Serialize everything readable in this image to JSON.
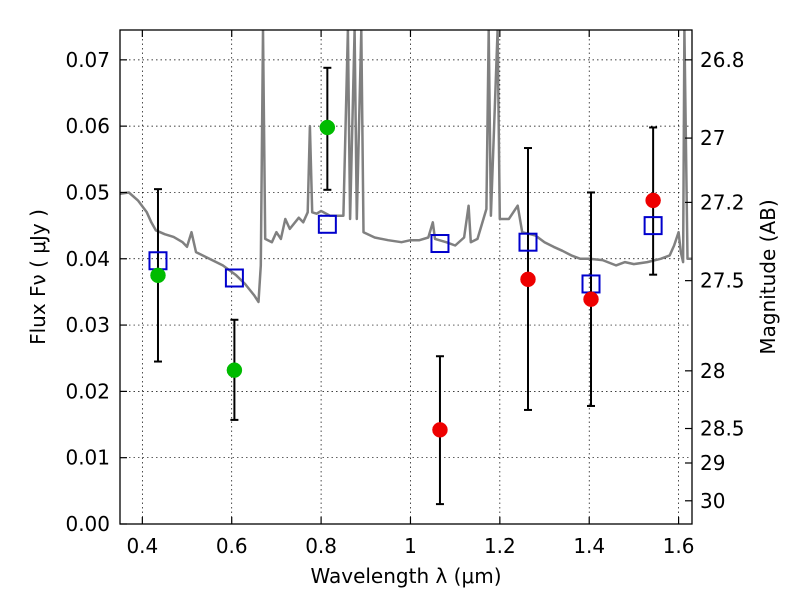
{
  "chart_data": {
    "type": "scatter",
    "title": "",
    "xlabel": "Wavelength  λ (μm)",
    "ylabel": "Flux  Fν  ( μJy )",
    "y2label": "Magnitude (AB)",
    "xlim": [
      0.35,
      1.63
    ],
    "ylim": [
      0.0,
      0.0745
    ],
    "grid": true,
    "legend": "none",
    "x_ticks": [
      {
        "value": 0.4,
        "label": "0.4"
      },
      {
        "value": 0.6,
        "label": "0.6"
      },
      {
        "value": 0.8,
        "label": "0.8"
      },
      {
        "value": 1.0,
        "label": "1"
      },
      {
        "value": 1.2,
        "label": "1.2"
      },
      {
        "value": 1.4,
        "label": "1.4"
      },
      {
        "value": 1.6,
        "label": "1.6"
      }
    ],
    "y_ticks": [
      {
        "value": 0.0,
        "label": "0.00"
      },
      {
        "value": 0.01,
        "label": "0.01"
      },
      {
        "value": 0.02,
        "label": "0.02"
      },
      {
        "value": 0.03,
        "label": "0.03"
      },
      {
        "value": 0.04,
        "label": "0.04"
      },
      {
        "value": 0.05,
        "label": "0.05"
      },
      {
        "value": 0.06,
        "label": "0.06"
      },
      {
        "value": 0.07,
        "label": "0.07"
      }
    ],
    "y2_ticks": [
      {
        "flux": 0.07,
        "label": "26.8"
      },
      {
        "flux": 0.0582,
        "label": "27"
      },
      {
        "flux": 0.0485,
        "label": "27.2"
      },
      {
        "flux": 0.0367,
        "label": "27.5"
      },
      {
        "flux": 0.0231,
        "label": "28"
      },
      {
        "flux": 0.0144,
        "label": "28.5"
      },
      {
        "flux": 0.0092,
        "label": "29"
      },
      {
        "flux": 0.0035,
        "label": "30"
      }
    ],
    "model_spectrum": {
      "color": "#808080",
      "points": [
        [
          0.35,
          0.0498
        ],
        [
          0.37,
          0.05
        ],
        [
          0.39,
          0.0488
        ],
        [
          0.41,
          0.047
        ],
        [
          0.42,
          0.0455
        ],
        [
          0.43,
          0.0443
        ],
        [
          0.45,
          0.0437
        ],
        [
          0.47,
          0.0433
        ],
        [
          0.49,
          0.0425
        ],
        [
          0.5,
          0.0418
        ],
        [
          0.51,
          0.044
        ],
        [
          0.52,
          0.041
        ],
        [
          0.55,
          0.04
        ],
        [
          0.58,
          0.039
        ],
        [
          0.61,
          0.0375
        ],
        [
          0.63,
          0.0362
        ],
        [
          0.65,
          0.0345
        ],
        [
          0.66,
          0.0335
        ],
        [
          0.665,
          0.039
        ],
        [
          0.67,
          0.0745
        ],
        [
          0.675,
          0.043
        ],
        [
          0.69,
          0.0425
        ],
        [
          0.7,
          0.044
        ],
        [
          0.71,
          0.043
        ],
        [
          0.72,
          0.046
        ],
        [
          0.73,
          0.0445
        ],
        [
          0.75,
          0.0462
        ],
        [
          0.76,
          0.0455
        ],
        [
          0.77,
          0.047
        ],
        [
          0.775,
          0.06
        ],
        [
          0.78,
          0.047
        ],
        [
          0.79,
          0.0468
        ],
        [
          0.8,
          0.0472
        ],
        [
          0.82,
          0.0465
        ],
        [
          0.85,
          0.0465
        ],
        [
          0.86,
          0.0745
        ],
        [
          0.865,
          0.046
        ],
        [
          0.875,
          0.0745
        ],
        [
          0.88,
          0.046
        ],
        [
          0.89,
          0.0745
        ],
        [
          0.895,
          0.044
        ],
        [
          0.92,
          0.0432
        ],
        [
          0.95,
          0.0428
        ],
        [
          0.98,
          0.0425
        ],
        [
          1.0,
          0.0428
        ],
        [
          1.02,
          0.0428
        ],
        [
          1.04,
          0.0432
        ],
        [
          1.05,
          0.0455
        ],
        [
          1.055,
          0.043
        ],
        [
          1.08,
          0.0425
        ],
        [
          1.1,
          0.042
        ],
        [
          1.12,
          0.0432
        ],
        [
          1.13,
          0.048
        ],
        [
          1.135,
          0.0425
        ],
        [
          1.15,
          0.043
        ],
        [
          1.17,
          0.0475
        ],
        [
          1.175,
          0.0745
        ],
        [
          1.18,
          0.0465
        ],
        [
          1.195,
          0.0745
        ],
        [
          1.2,
          0.046
        ],
        [
          1.22,
          0.046
        ],
        [
          1.24,
          0.048
        ],
        [
          1.25,
          0.044
        ],
        [
          1.28,
          0.0435
        ],
        [
          1.3,
          0.0425
        ],
        [
          1.32,
          0.0418
        ],
        [
          1.34,
          0.0412
        ],
        [
          1.36,
          0.0405
        ],
        [
          1.38,
          0.04
        ],
        [
          1.4,
          0.04
        ],
        [
          1.43,
          0.0398
        ],
        [
          1.46,
          0.039
        ],
        [
          1.48,
          0.0395
        ],
        [
          1.5,
          0.0392
        ],
        [
          1.53,
          0.0395
        ],
        [
          1.56,
          0.04
        ],
        [
          1.58,
          0.0405
        ],
        [
          1.59,
          0.042
        ],
        [
          1.6,
          0.044
        ],
        [
          1.605,
          0.041
        ],
        [
          1.61,
          0.0395
        ],
        [
          1.613,
          0.0745
        ],
        [
          1.62,
          0.04
        ],
        [
          1.63,
          0.04
        ]
      ]
    },
    "model_photometry": {
      "marker": "open-square",
      "color": "#0000cc",
      "points": [
        {
          "x": 0.435,
          "y": 0.0397
        },
        {
          "x": 0.606,
          "y": 0.0371
        },
        {
          "x": 0.814,
          "y": 0.0452
        },
        {
          "x": 1.066,
          "y": 0.0423
        },
        {
          "x": 1.263,
          "y": 0.0425
        },
        {
          "x": 1.404,
          "y": 0.0362
        },
        {
          "x": 1.543,
          "y": 0.045
        }
      ]
    },
    "observed": [
      {
        "x": 0.435,
        "y": 0.0375,
        "err_low": 0.0245,
        "err_high": 0.0505,
        "color": "#00bb00"
      },
      {
        "x": 0.606,
        "y": 0.0232,
        "err_low": 0.0157,
        "err_high": 0.0308,
        "color": "#00bb00"
      },
      {
        "x": 0.814,
        "y": 0.0598,
        "err_low": 0.0504,
        "err_high": 0.0688,
        "color": "#00bb00"
      },
      {
        "x": 1.066,
        "y": 0.0142,
        "err_low": 0.003,
        "err_high": 0.0253,
        "color": "#ee0000"
      },
      {
        "x": 1.263,
        "y": 0.0369,
        "err_low": 0.0172,
        "err_high": 0.0567,
        "color": "#ee0000"
      },
      {
        "x": 1.404,
        "y": 0.0339,
        "err_low": 0.0178,
        "err_high": 0.05,
        "color": "#ee0000"
      },
      {
        "x": 1.543,
        "y": 0.0488,
        "err_low": 0.0376,
        "err_high": 0.0598,
        "color": "#ee0000"
      }
    ]
  }
}
